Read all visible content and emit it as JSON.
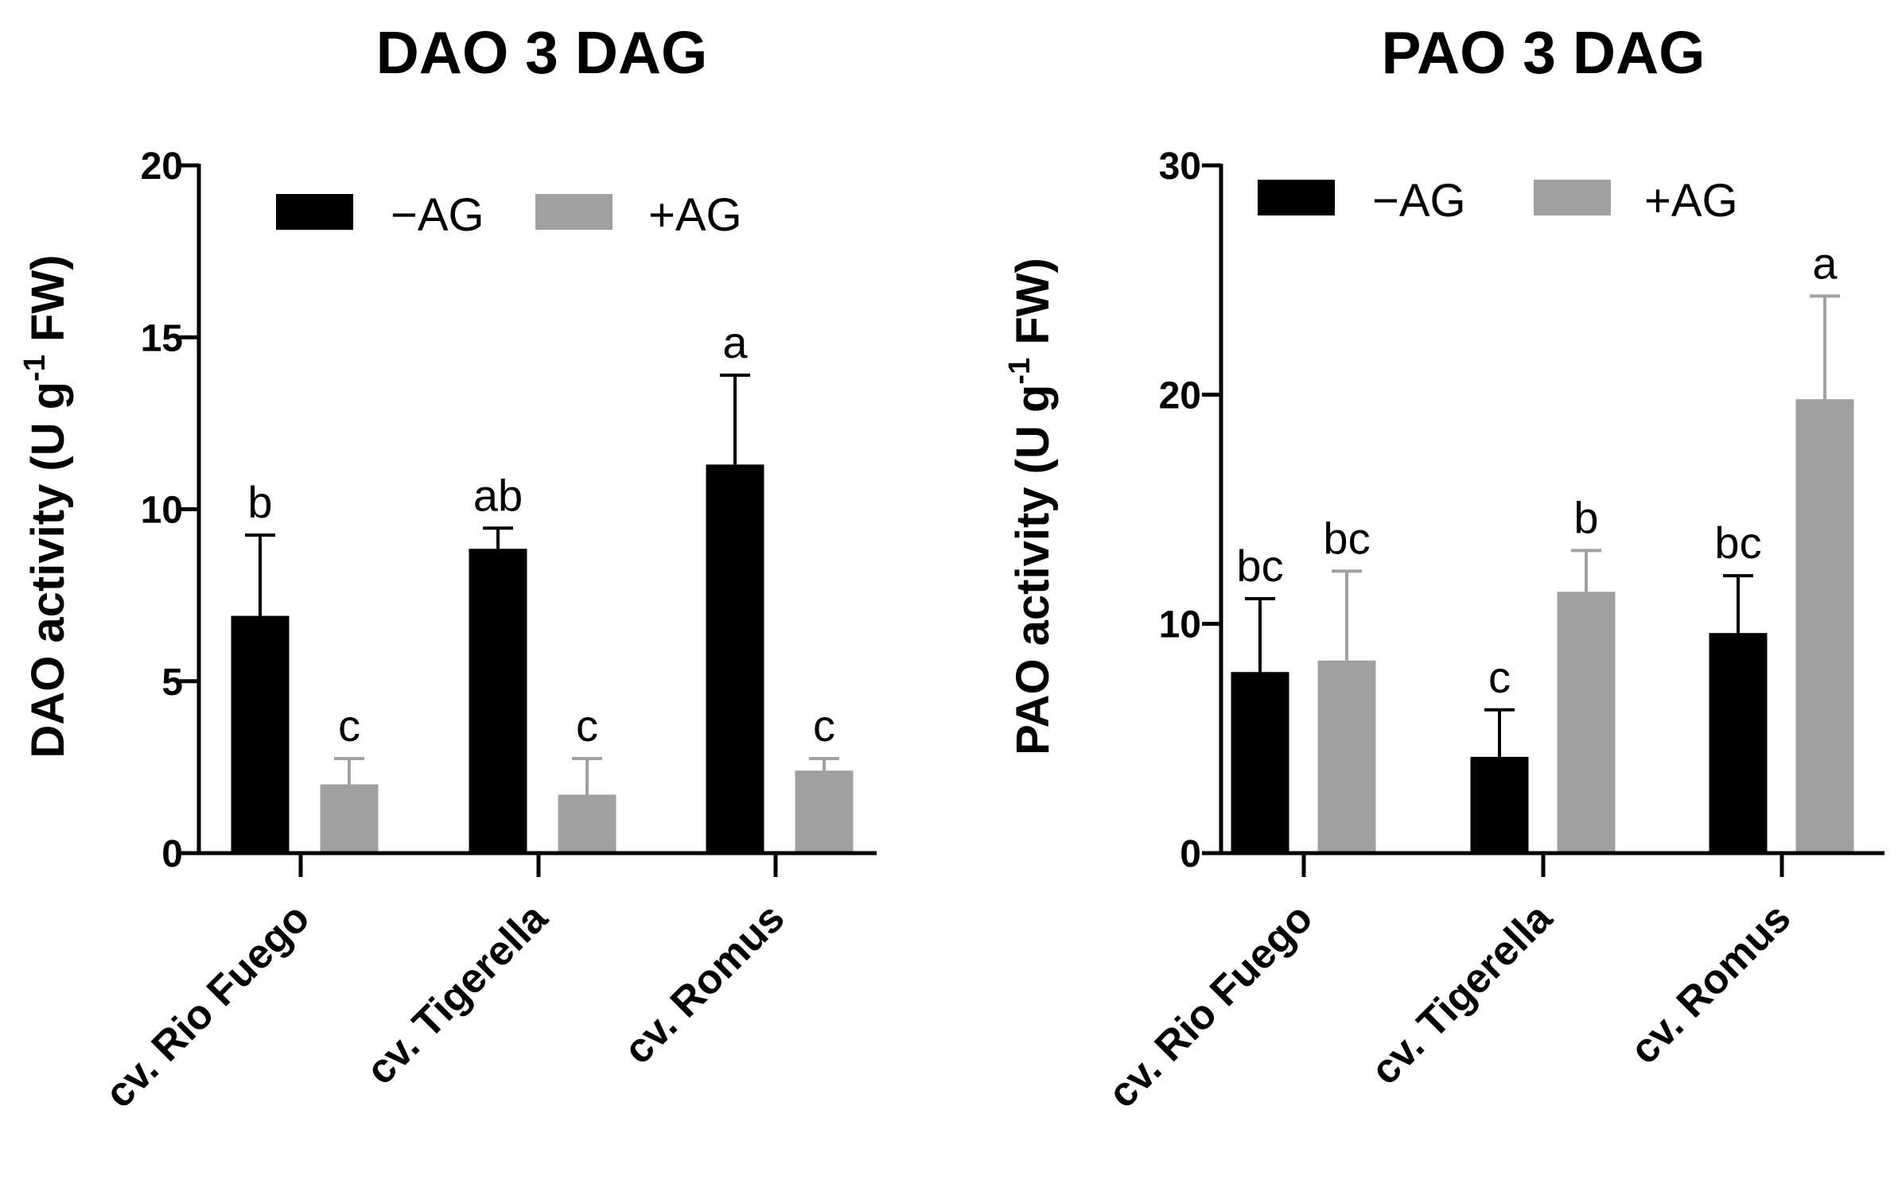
{
  "chart_data": [
    {
      "type": "bar",
      "title": "DAO 3 DAG",
      "xlabel": "",
      "ylabel": "DAO activity (U g",
      "ylabel_sup": "-1",
      "ylabel_end": " FW)",
      "ylim": [
        0,
        20
      ],
      "yticks": [
        0,
        5,
        10,
        15,
        20
      ],
      "yticklabels": [
        "0",
        "5",
        "10",
        "15",
        "20"
      ],
      "categories": [
        "cv. Rio Fuego",
        "cv. Tigerella",
        "cv. Romus"
      ],
      "series": [
        {
          "name": "−AG",
          "color": "#000000",
          "values": [
            6.9,
            8.85,
            11.3
          ],
          "errors": [
            2.35,
            0.6,
            2.6
          ],
          "letters": [
            "b",
            "ab",
            "a"
          ]
        },
        {
          "name": "+AG",
          "color": "#a0a0a2",
          "values": [
            2.0,
            1.7,
            2.4
          ],
          "errors": [
            0.75,
            1.05,
            0.35
          ],
          "letters": [
            "c",
            "c",
            "c"
          ]
        }
      ],
      "legend": "top"
    },
    {
      "type": "bar",
      "title": "PAO 3 DAG",
      "xlabel": "",
      "ylabel": "PAO activity (U g",
      "ylabel_sup": "-1",
      "ylabel_end": " FW)",
      "ylim": [
        0,
        30
      ],
      "yticks": [
        0,
        10,
        20,
        30
      ],
      "yticklabels": [
        "0",
        "10",
        "20",
        "30"
      ],
      "categories": [
        "cv. Rio Fuego",
        "cv. Tigerella",
        "cv. Romus"
      ],
      "series": [
        {
          "name": "−AG",
          "color": "#000000",
          "values": [
            7.9,
            4.2,
            9.6
          ],
          "errors": [
            3.2,
            2.05,
            2.5
          ],
          "letters": [
            "bc",
            "c",
            "bc"
          ]
        },
        {
          "name": "+AG",
          "color": "#a0a0a2",
          "values": [
            8.4,
            11.4,
            19.8
          ],
          "errors": [
            3.9,
            1.8,
            4.5
          ],
          "letters": [
            "bc",
            "b",
            "a"
          ]
        }
      ],
      "legend": "top"
    }
  ]
}
